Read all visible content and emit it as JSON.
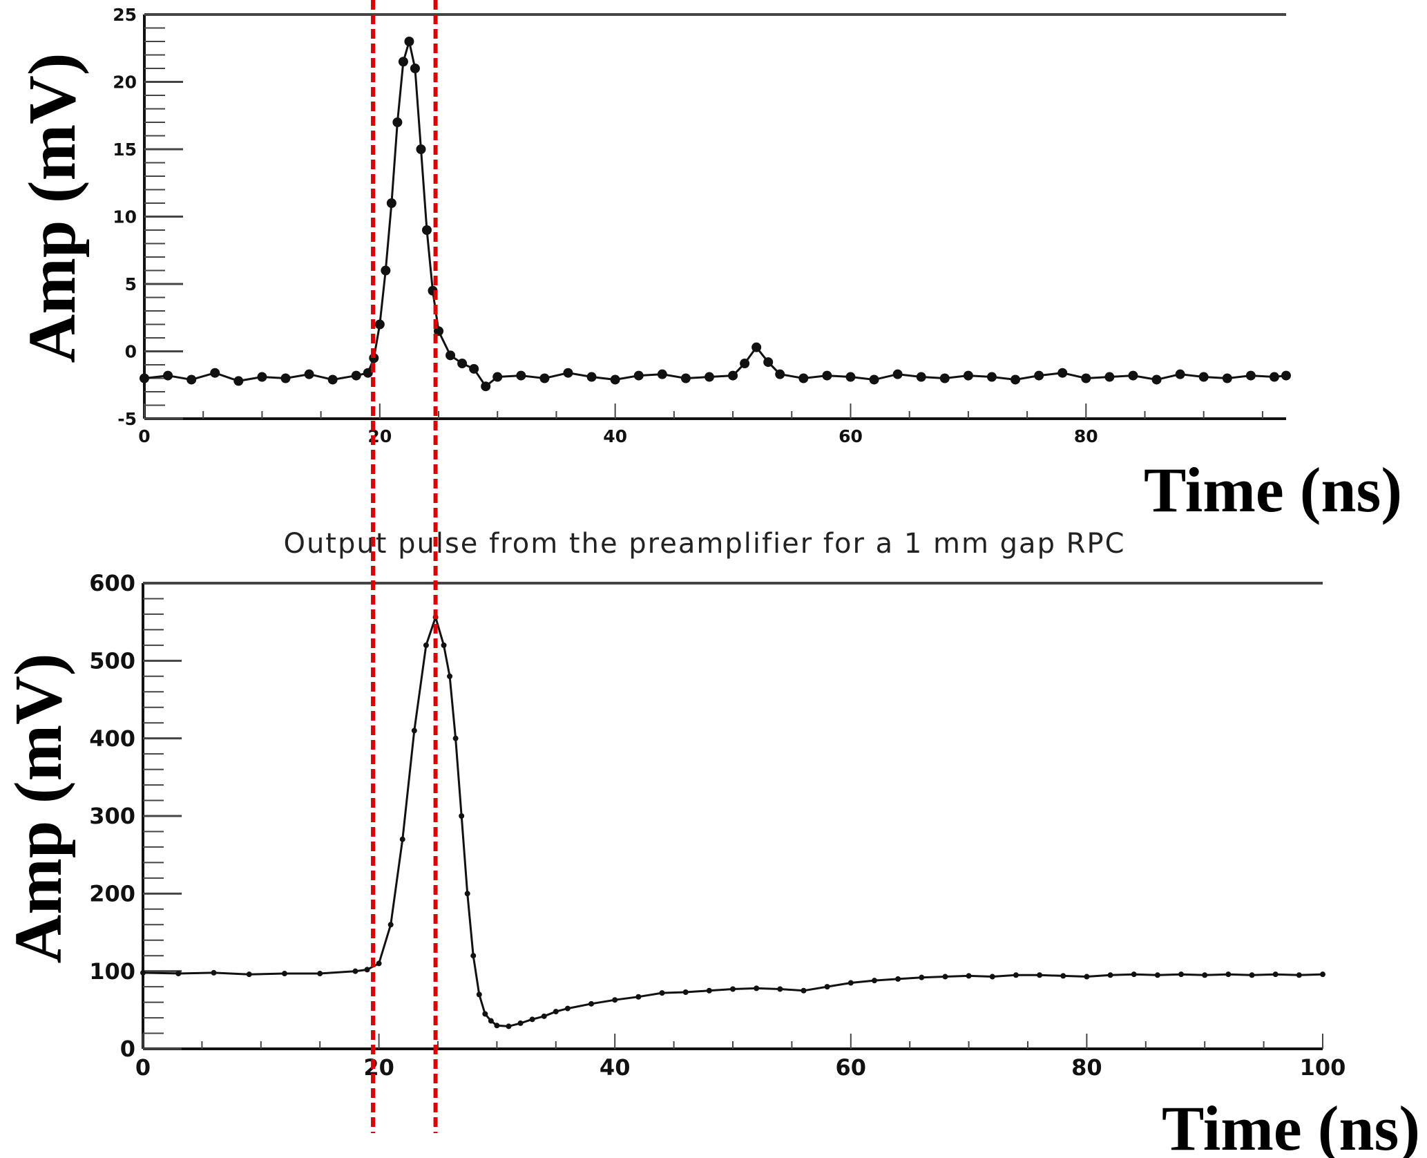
{
  "chart_data": [
    {
      "type": "scatter",
      "panel": "top",
      "title": "",
      "xlabel": "Time (ns)",
      "ylabel": "Amp (mV)",
      "xlim": [
        0,
        97
      ],
      "ylim": [
        -5,
        25
      ],
      "x_ticks": [
        0,
        20,
        40,
        60,
        80
      ],
      "y_ticks": [
        -5,
        0,
        5,
        10,
        15,
        20,
        25
      ],
      "x_tick_labels": [
        "0",
        "20",
        "40",
        "60",
        "80"
      ],
      "y_tick_labels": [
        "-5",
        "0",
        "5",
        "10",
        "15",
        "20",
        "25"
      ],
      "grid": false,
      "series": [
        {
          "x": [
            0,
            2,
            4,
            6,
            8,
            10,
            12,
            14,
            16,
            18,
            19,
            19.5,
            20,
            20.5,
            21,
            21.5,
            22,
            22.5,
            23,
            23.5,
            24,
            24.5,
            25,
            26,
            27,
            28,
            29,
            30,
            32,
            34,
            36,
            38,
            40,
            42,
            44,
            46,
            48,
            50,
            51,
            52,
            53,
            54,
            56,
            58,
            60,
            62,
            64,
            66,
            68,
            70,
            72,
            74,
            76,
            78,
            80,
            82,
            84,
            86,
            88,
            90,
            92,
            94,
            96,
            97
          ],
          "y": [
            -2,
            -1.8,
            -2.1,
            -1.6,
            -2.2,
            -1.9,
            -2,
            -1.7,
            -2.1,
            -1.8,
            -1.6,
            -0.5,
            2,
            6,
            11,
            17,
            21.5,
            23,
            21,
            15,
            9,
            4.5,
            1.5,
            -0.3,
            -0.9,
            -1.3,
            -2.6,
            -1.9,
            -1.8,
            -2,
            -1.6,
            -1.9,
            -2.1,
            -1.8,
            -1.7,
            -2,
            -1.9,
            -1.8,
            -0.9,
            0.3,
            -0.8,
            -1.7,
            -2,
            -1.8,
            -1.9,
            -2.1,
            -1.7,
            -1.9,
            -2,
            -1.8,
            -1.9,
            -2.1,
            -1.8,
            -1.6,
            -2,
            -1.9,
            -1.8,
            -2.1,
            -1.7,
            -1.9,
            -2,
            -1.8,
            -1.9,
            -1.8
          ]
        }
      ]
    },
    {
      "type": "scatter",
      "panel": "bottom",
      "title": "Output pulse from the preamplifier for a 1 mm gap RPC",
      "xlabel": "Time (ns)",
      "ylabel": "Amp (mV)",
      "xlim": [
        0,
        100
      ],
      "ylim": [
        0,
        600
      ],
      "x_ticks": [
        0,
        20,
        40,
        60,
        80,
        100
      ],
      "y_ticks": [
        0,
        100,
        200,
        300,
        400,
        500,
        600
      ],
      "x_tick_labels": [
        "0",
        "20",
        "40",
        "60",
        "80",
        "100"
      ],
      "y_tick_labels": [
        "0",
        "100",
        "200",
        "300",
        "400",
        "500",
        "600"
      ],
      "grid": false,
      "series": [
        {
          "x": [
            0,
            3,
            6,
            9,
            12,
            15,
            18,
            19,
            20,
            21,
            22,
            23,
            24,
            24.8,
            25.5,
            26,
            26.5,
            27,
            27.5,
            28,
            28.5,
            29,
            29.5,
            30,
            31,
            32,
            33,
            34,
            35,
            36,
            38,
            40,
            42,
            44,
            46,
            48,
            50,
            52,
            54,
            56,
            58,
            60,
            62,
            64,
            66,
            68,
            70,
            72,
            74,
            76,
            78,
            80,
            82,
            84,
            86,
            88,
            90,
            92,
            94,
            96,
            98,
            100
          ],
          "y": [
            98,
            97,
            98,
            96,
            97,
            97,
            100,
            102,
            110,
            160,
            270,
            410,
            520,
            556,
            520,
            480,
            400,
            300,
            200,
            120,
            70,
            45,
            36,
            30,
            29,
            33,
            38,
            42,
            48,
            52,
            58,
            63,
            67,
            72,
            73,
            75,
            77,
            78,
            77,
            75,
            80,
            85,
            88,
            90,
            92,
            93,
            94,
            93,
            95,
            95,
            94,
            93,
            95,
            96,
            95,
            96,
            95,
            96,
            95,
            96,
            95,
            96
          ]
        }
      ]
    }
  ],
  "markers": {
    "color": "#e00000",
    "times": [
      19.5,
      24.8
    ]
  }
}
